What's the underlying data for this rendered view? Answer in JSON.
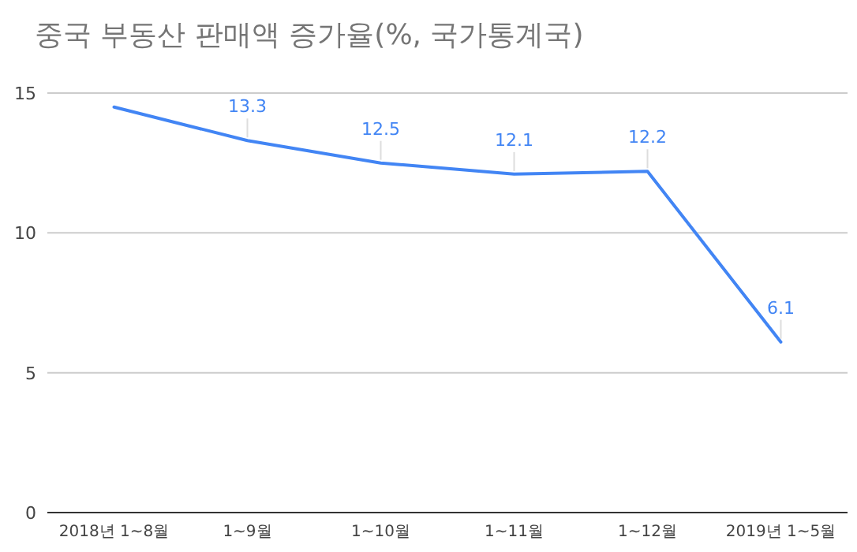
{
  "chart_data": {
    "type": "line",
    "title": "중국 부동산 판매액 증가율(%, 국가통계국)",
    "categories": [
      "2018년 1~8월",
      "1~9월",
      "1~10월",
      "1~11월",
      "1~12월",
      "2019년 1~5월"
    ],
    "series": [
      {
        "color": "#4285f4",
        "values": [
          14.5,
          13.3,
          12.5,
          12.1,
          12.2,
          6.1
        ]
      }
    ],
    "value_labels": [
      null,
      "13.3",
      "12.5",
      "12.1",
      "12.2",
      "6.1"
    ],
    "ylim": [
      0,
      15
    ],
    "yticks": [
      0,
      5,
      10,
      15
    ],
    "grid": "y",
    "marker": "none",
    "line_style": "solid"
  }
}
